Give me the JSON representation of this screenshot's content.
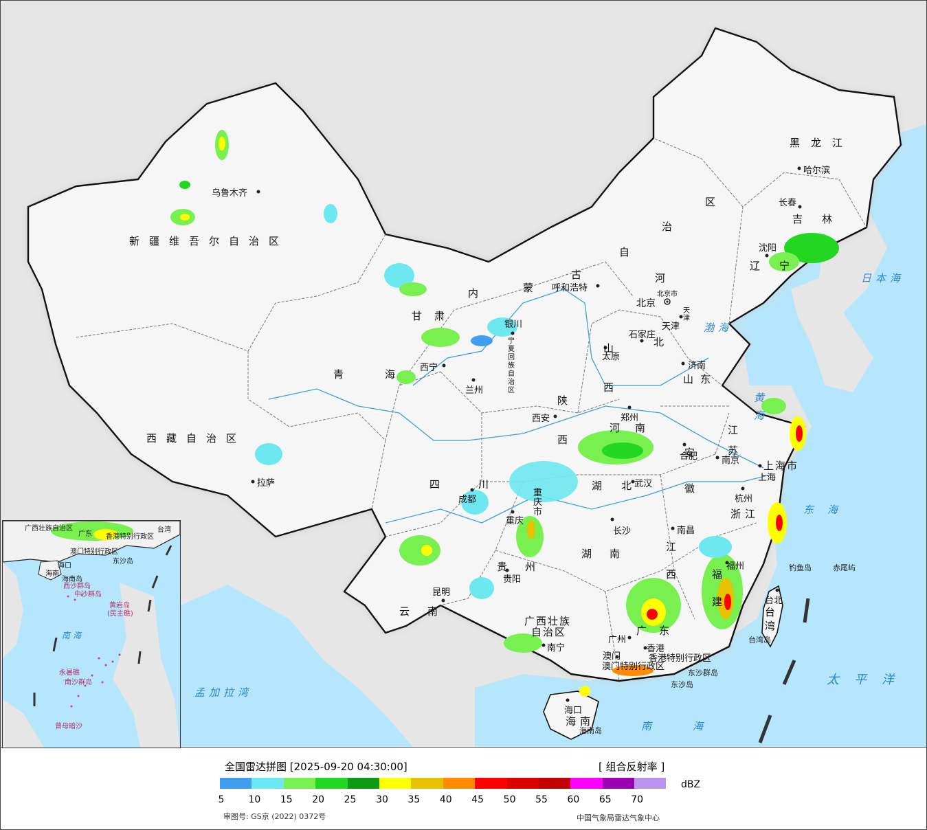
{
  "legend": {
    "title": "全国雷达拼图 [2025-09-20 04:30:00]",
    "product": "[ 组合反射率 ]",
    "unit": "dBZ",
    "colors": [
      "#3f9ef0",
      "#6ee8f0",
      "#78f050",
      "#22d622",
      "#109a10",
      "#ffff00",
      "#e6c200",
      "#ff8c00",
      "#ff0000",
      "#d80000",
      "#c00000",
      "#ff00ff",
      "#9a00b0",
      "#b896f0"
    ],
    "ticks": [
      "5",
      "10",
      "15",
      "20",
      "25",
      "30",
      "35",
      "40",
      "45",
      "50",
      "55",
      "60",
      "65",
      "70"
    ],
    "approval": "审图号: GS京 (2022) 0372号",
    "agency": "中国气象局雷达气象中心"
  },
  "map": {
    "provinces": {
      "xinjiang": "新疆维吾尔自治区",
      "xizang": "西藏自治区",
      "qinghai": "青海",
      "gansu": "甘肃",
      "neimenggu_1": "内",
      "neimenggu_2": "蒙",
      "neimenggu_3": "古",
      "neimenggu_4": "自",
      "neimenggu_5": "治",
      "neimenggu_6": "区",
      "heilongjiang": "黑龙江",
      "jilin": "吉林",
      "liaoning": "辽宁",
      "hebei_1": "河",
      "hebei_2": "北",
      "shanxi": "山西",
      "shaanxi": "陕西",
      "ningxia": "宁夏回族自治区",
      "shandong": "山东",
      "henan": "河南",
      "jiangsu": "江苏",
      "anhui": "安徽",
      "hubei": "湖北",
      "sichuan": "四川",
      "chongqing": "重庆市",
      "zhejiang": "浙江",
      "jiangxi": "江西",
      "hunan": "湖南",
      "guizhou": "贵州",
      "yunnan": "云南",
      "guangxi_1": "广西壮族",
      "guangxi_2": "自治区",
      "guangdong": "广东",
      "fujian": "福建",
      "taiwan": "台湾",
      "hainan": "海南",
      "shanghai": "上海市",
      "beijing": "北京市",
      "tianjin": "天津",
      "hongkong": "香港特别行政区",
      "macau": "澳门特别行政区"
    },
    "cities": {
      "urumqi": "乌鲁木齐",
      "lhasa": "拉萨",
      "xining": "西宁",
      "lanzhou": "兰州",
      "yinchuan": "银川",
      "hohhot": "呼和浩特",
      "beijing": "北京",
      "tianjin": "天津",
      "shijiazhuang": "石家庄",
      "taiyuan": "太原",
      "jinan": "济南",
      "zhengzhou": "郑州",
      "xian": "西安",
      "chengdu": "成都",
      "chongqing": "重庆",
      "wuhan": "武汉",
      "hefei": "合肥",
      "nanjing": "南京",
      "shanghai": "上海",
      "hangzhou": "杭州",
      "nanchang": "南昌",
      "changsha": "长沙",
      "guiyang": "贵阳",
      "kunming": "昆明",
      "nanning": "南宁",
      "guangzhou": "广州",
      "macau": "澳门",
      "hongkong": "香港",
      "fuzhou": "福州",
      "taipei": "台北",
      "haikou": "海口",
      "shenyang": "沈阳",
      "changchun": "长春",
      "harbin": "哈尔滨"
    },
    "seas": {
      "bohai": "渤海",
      "yellow": "黄海",
      "east": "东海",
      "south": "南海",
      "japan": "日本海",
      "pacific": "太平洋",
      "bengal": "孟加拉湾"
    },
    "islands": {
      "diaoyu": "钓鱼岛",
      "chiwei": "赤尾屿",
      "dongsha_islands": "东沙群岛",
      "dongsha": "东沙岛",
      "hainan_island": "海南岛",
      "taiwan_island": "台湾岛"
    }
  },
  "inset": {
    "guangxi": "广西壮族自治区",
    "guangdong": "广东",
    "taiwan": "台湾",
    "hk": "香港特别行政区",
    "macau": "澳门特别行政区",
    "dongsha": "东沙岛",
    "haikou": "海口",
    "hainan": "海南",
    "hainan_island": "海南岛",
    "xisha": "西沙群岛",
    "zhongsha": "中沙群岛",
    "huangyan": "黄岩岛",
    "huangyan_sub": "(民主礁)",
    "south_sea": "南海",
    "yongshu": "永暑礁",
    "nansha": "南沙群岛",
    "zengmu": "曾母暗沙"
  }
}
